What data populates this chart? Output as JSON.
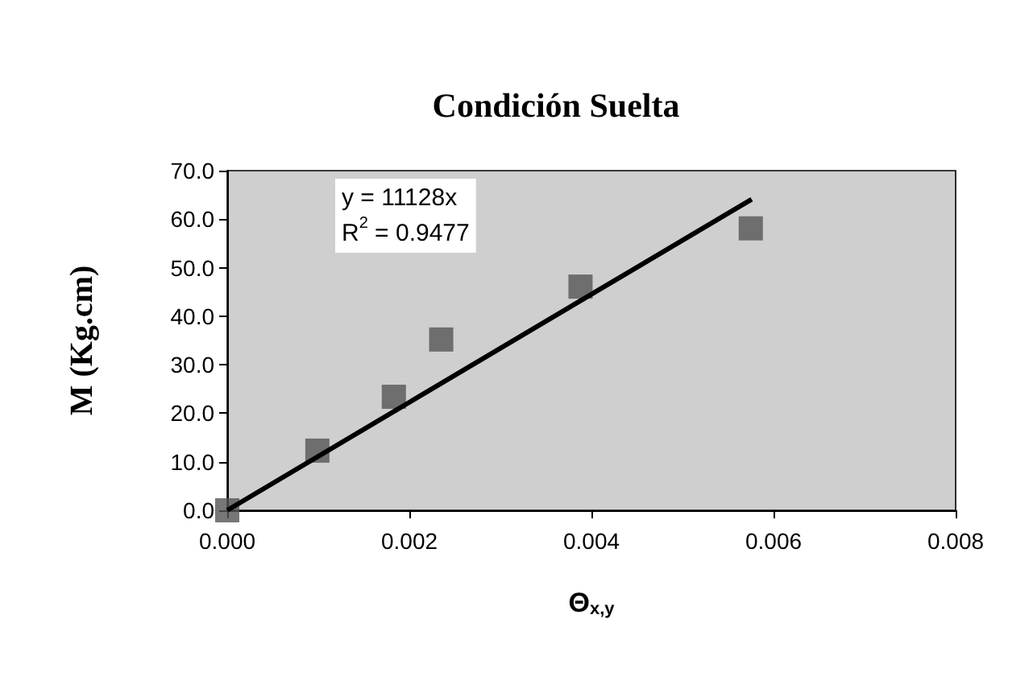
{
  "chart_data": {
    "type": "scatter",
    "title": "Condición Suelta",
    "xlabel": "Θ$_{x,y}$",
    "ylabel": "M (Kg.cm)",
    "annotations": [
      "y = 11128x",
      "R$^{2}$ = 0.9477"
    ],
    "series": [
      {
        "color": "#555555",
        "x": [
          0,
          0.00099,
          0.00183,
          0.00235,
          0.00388,
          0.00575
        ],
        "values": [
          0,
          12.3,
          23.4,
          35.2,
          46.1,
          58.1
        ],
        "marker": "square"
      },
      {
        "type": "line",
        "color": "#000000",
        "x": [
          0,
          0.00576
        ],
        "values": [
          0,
          64.1
        ],
        "marker": "none",
        "line_style": "solid"
      }
    ],
    "xlim": [
      0,
      0.008
    ],
    "xticks": [
      {
        "value": 0,
        "label": "0.000"
      },
      {
        "value": 0.002,
        "label": "0.002"
      },
      {
        "value": 0.004,
        "label": "0.004"
      },
      {
        "value": 0.006,
        "label": "0.006"
      },
      {
        "value": 0.008,
        "label": "0.008"
      }
    ],
    "ylim": [
      0,
      70
    ],
    "yticks": [
      {
        "value": 0,
        "label": "0.0"
      },
      {
        "value": 10,
        "label": "10.0"
      },
      {
        "value": 20,
        "label": "20.0"
      },
      {
        "value": 30,
        "label": "30.0"
      },
      {
        "value": 40,
        "label": "40.0"
      },
      {
        "value": 50,
        "label": "50.0"
      },
      {
        "value": 60,
        "label": "60.0"
      },
      {
        "value": 70,
        "label": "70.0"
      }
    ],
    "grid": false
  }
}
